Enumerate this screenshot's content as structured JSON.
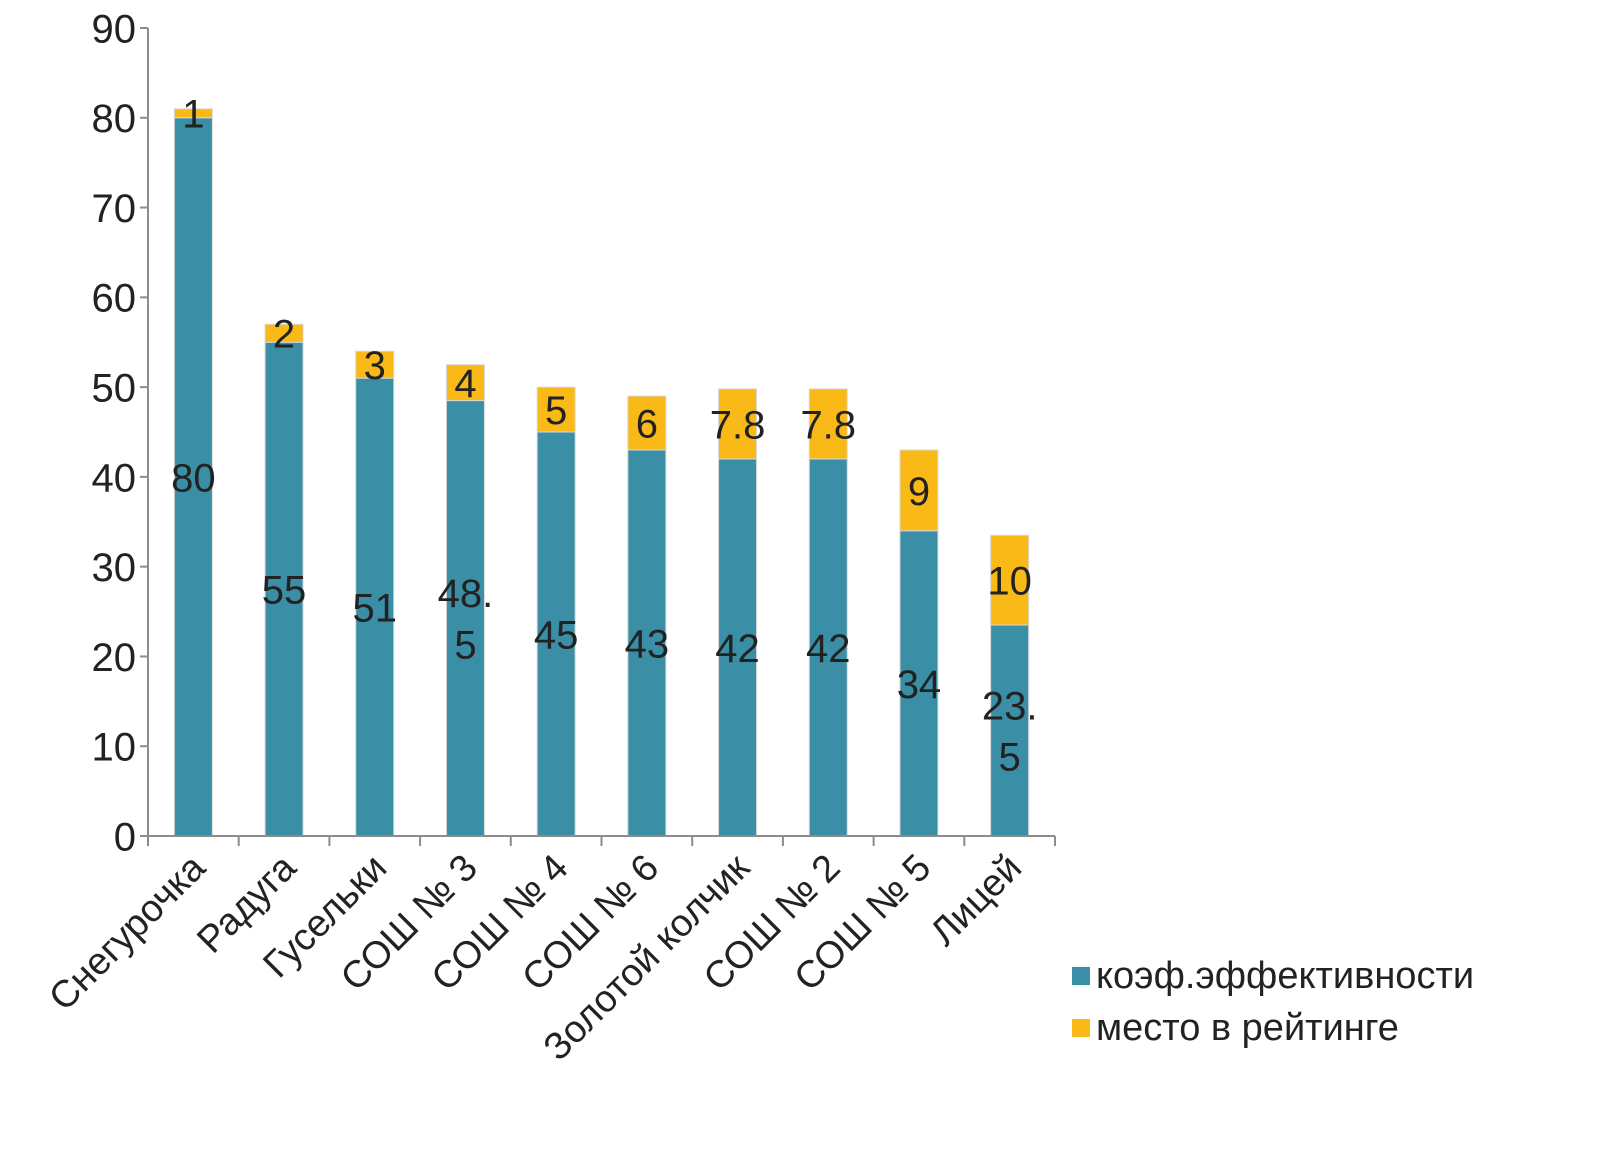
{
  "chart_data": {
    "type": "bar",
    "stacked": true,
    "categories": [
      "Снегурочка",
      "Радуга",
      "Гусельки",
      "СОШ № 3",
      "СОШ № 4",
      "СОШ № 6",
      "Золотой колчик",
      "СОШ № 2",
      "СОШ № 5",
      "Лицей"
    ],
    "series": [
      {
        "name": "коэф.эффективности",
        "color": "#3a8ea5",
        "values": [
          80,
          55,
          51,
          48.5,
          45,
          43,
          42,
          42,
          34,
          23.5
        ],
        "labels": [
          [
            "80"
          ],
          [
            "55"
          ],
          [
            "51"
          ],
          [
            "48.",
            "5"
          ],
          [
            "45"
          ],
          [
            "43"
          ],
          [
            "42"
          ],
          [
            "42"
          ],
          [
            "34"
          ],
          [
            "23.",
            "5"
          ]
        ]
      },
      {
        "name": "место в рейтинге",
        "color": "#f9b917",
        "values": [
          1,
          2,
          3,
          4,
          5,
          6,
          7.8,
          7.8,
          9,
          10
        ],
        "labels": [
          [
            "1"
          ],
          [
            "2"
          ],
          [
            "3"
          ],
          [
            "4"
          ],
          [
            "5"
          ],
          [
            "6"
          ],
          [
            "7.8"
          ],
          [
            "7.8"
          ],
          [
            "9"
          ],
          [
            "10"
          ]
        ]
      }
    ],
    "ylim": [
      0,
      90
    ],
    "yticks": [
      0,
      10,
      20,
      30,
      40,
      50,
      60,
      70,
      80,
      90
    ],
    "grid": false,
    "legend": "bottom-right",
    "colors": {
      "axis": "#8c8c8c",
      "text": "#222222",
      "bar_edge": "#d9d9d9"
    }
  }
}
